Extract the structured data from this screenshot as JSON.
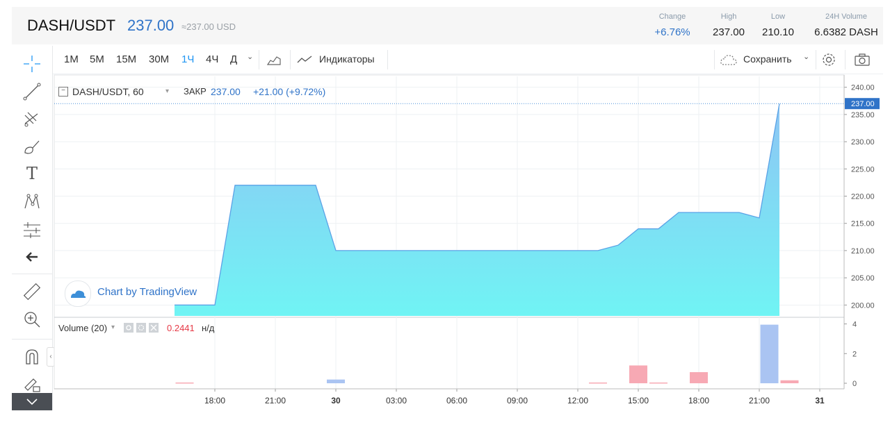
{
  "header": {
    "pair": "DASH/USDT",
    "price": "237.00",
    "price_usd": "≈237.00 USD",
    "stats": [
      {
        "label": "Change",
        "value": "+6.76%",
        "color": "#2f73c8"
      },
      {
        "label": "High",
        "value": "237.00",
        "color": "#222222"
      },
      {
        "label": "Low",
        "value": "210.10",
        "color": "#222222"
      },
      {
        "label": "24H Volume",
        "value": "6.6382 DASH",
        "color": "#222222"
      }
    ]
  },
  "toolbar": {
    "timeframes": [
      "1M",
      "5M",
      "15M",
      "30M",
      "1Ч",
      "4Ч",
      "Д"
    ],
    "active_timeframe": "1Ч",
    "indicators_label": "Индикаторы",
    "save_label": "Сохранить"
  },
  "left_tools": [
    "crosshair-icon",
    "trend-line-icon",
    "fib-icon",
    "brush-icon",
    "text-icon",
    "pattern-icon",
    "forecast-icon",
    "arrow-left-icon",
    "ruler-icon",
    "zoom-in-icon",
    "magnet-icon",
    "lock-drawing-icon"
  ],
  "legend": {
    "symbol": "DASH/USDT, 60",
    "close_label": "ЗАКР",
    "close_value": "237.00",
    "change": "+21.00 (+9.72%)"
  },
  "watermark": "Chart by TradingView",
  "volume_legend": {
    "label": "Volume (20)",
    "value": "0.2441",
    "na": "н/д"
  },
  "colors": {
    "accent": "#2196f3",
    "area_top": "#8ec5f4",
    "area_bottom": "#70f4f4",
    "volume_up": "#aac4f2",
    "volume_down": "#f7a9b4"
  },
  "chart_data": {
    "type": "area",
    "x_ticks": [
      "18:00",
      "21:00",
      "30",
      "03:00",
      "06:00",
      "09:00",
      "12:00",
      "15:00",
      "18:00",
      "21:00",
      "31"
    ],
    "y_ticks": [
      "240.00",
      "235.00",
      "230.00",
      "225.00",
      "220.00",
      "215.00",
      "210.00",
      "205.00",
      "200.00"
    ],
    "ylim": [
      198,
      242
    ],
    "last_price_label": "237.00",
    "x_hours": [
      -2,
      0,
      1,
      5,
      6,
      19,
      20,
      21,
      22,
      23,
      26,
      27,
      28
    ],
    "price": [
      200,
      200,
      222,
      222,
      210,
      210,
      211,
      214,
      214,
      217,
      217,
      216,
      237
    ],
    "volume": {
      "ylim": [
        0,
        4.4
      ],
      "y_ticks": [
        "4",
        "2",
        "0"
      ],
      "bars": [
        {
          "x": -1.5,
          "v": 0.05,
          "dir": "down"
        },
        {
          "x": 6,
          "v": 0.25,
          "dir": "up"
        },
        {
          "x": 19,
          "v": 0.05,
          "dir": "down"
        },
        {
          "x": 21,
          "v": 1.2,
          "dir": "down"
        },
        {
          "x": 22,
          "v": 0.05,
          "dir": "down"
        },
        {
          "x": 24,
          "v": 0.75,
          "dir": "down"
        },
        {
          "x": 27.5,
          "v": 3.95,
          "dir": "up"
        },
        {
          "x": 28.5,
          "v": 0.2,
          "dir": "down"
        }
      ]
    }
  }
}
